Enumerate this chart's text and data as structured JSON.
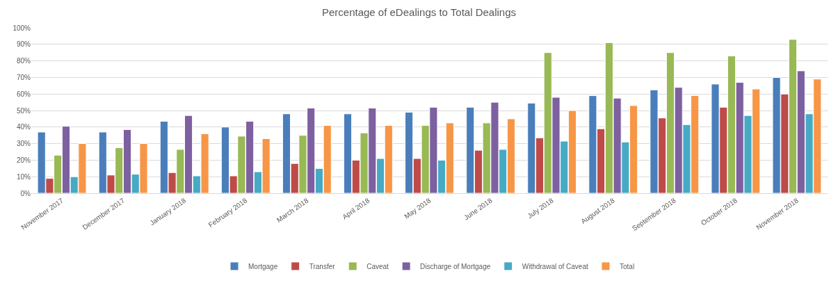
{
  "chart_data": {
    "type": "bar",
    "title": "Percentage of eDealings to Total Dealings",
    "categories": [
      "November 2017",
      "December 2017",
      "January 2018",
      "February 2018",
      "March 2018",
      "April 2018",
      "May 2018",
      "June 2018",
      "July 2018",
      "August 2018",
      "September 2018",
      "October 2018",
      "November 2018"
    ],
    "series": [
      {
        "name": "Mortgage",
        "color": "#4a7ebb",
        "values": [
          37,
          37,
          43.5,
          40,
          48,
          48,
          49,
          52,
          54.5,
          59,
          62.5,
          66,
          70
        ]
      },
      {
        "name": "Transfer",
        "color": "#be4b48",
        "values": [
          9,
          11,
          12.5,
          10.5,
          18,
          20,
          21,
          26,
          33.5,
          39,
          45.5,
          52,
          60
        ]
      },
      {
        "name": "Caveat",
        "color": "#98b954",
        "values": [
          23,
          27.5,
          26.5,
          34.5,
          35,
          36.5,
          41,
          42.5,
          85,
          91,
          85,
          83,
          93
        ]
      },
      {
        "name": "Discharge of Mortgage",
        "color": "#7d60a0",
        "values": [
          40.5,
          38.5,
          47,
          43.5,
          51.5,
          51.5,
          52,
          55,
          58,
          57.5,
          64,
          67,
          74
        ]
      },
      {
        "name": "Withdrawal of Caveat",
        "color": "#46aac5",
        "values": [
          10,
          11.5,
          10.5,
          13,
          15,
          21,
          20,
          26.5,
          31.5,
          31,
          41.5,
          47,
          48
        ]
      },
      {
        "name": "Total",
        "color": "#f79646",
        "values": [
          30,
          30,
          36,
          33,
          41,
          41,
          42.5,
          45,
          50,
          53,
          59,
          63,
          69
        ]
      }
    ],
    "ylim": [
      0,
      100
    ],
    "yticks": [
      {
        "value": 0,
        "label": "0%"
      },
      {
        "value": 10,
        "label": "10%"
      },
      {
        "value": 20,
        "label": "20%"
      },
      {
        "value": 30,
        "label": "30%"
      },
      {
        "value": 40,
        "label": "40%"
      },
      {
        "value": 50,
        "label": "50%"
      },
      {
        "value": 60,
        "label": "60%"
      },
      {
        "value": 70,
        "label": "70%"
      },
      {
        "value": 80,
        "label": "80%"
      },
      {
        "value": 90,
        "label": "90%"
      },
      {
        "value": 100,
        "label": "100%"
      }
    ],
    "grid": "y",
    "legend": "bottom"
  }
}
